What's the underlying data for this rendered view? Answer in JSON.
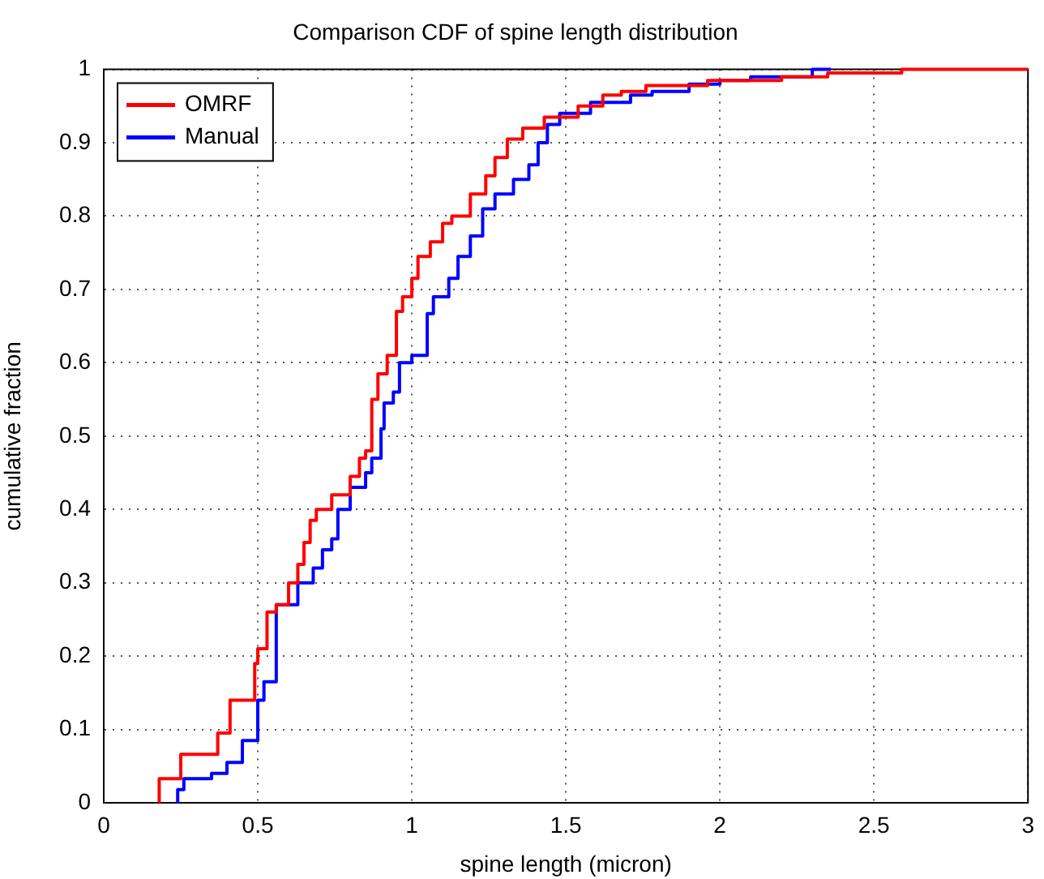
{
  "chart_data": {
    "type": "step",
    "title": "Comparison CDF of spine length distribution",
    "xlabel": "spine length (micron)",
    "ylabel": "cumulative fraction",
    "xlim": [
      0,
      3
    ],
    "ylim": [
      0,
      1
    ],
    "xticks": [
      0,
      0.5,
      1,
      1.5,
      2,
      2.5,
      3
    ],
    "yticks": [
      0,
      0.1,
      0.2,
      0.3,
      0.4,
      0.5,
      0.6,
      0.7,
      0.8,
      0.9,
      1
    ],
    "grid": true,
    "legend": "top left",
    "series": [
      {
        "name": "OMRF",
        "color": "#ff0000",
        "x": [
          0.18,
          0.25,
          0.37,
          0.41,
          0.49,
          0.5,
          0.53,
          0.56,
          0.6,
          0.63,
          0.65,
          0.67,
          0.69,
          0.74,
          0.8,
          0.83,
          0.85,
          0.87,
          0.89,
          0.92,
          0.95,
          0.97,
          1.0,
          1.02,
          1.06,
          1.1,
          1.13,
          1.19,
          1.24,
          1.27,
          1.31,
          1.36,
          1.43,
          1.54,
          1.62,
          1.68,
          1.76,
          1.96,
          2.2,
          2.35,
          2.59,
          2.73,
          2.77,
          3
        ],
        "values": [
          0,
          0.033,
          0.066,
          0.095,
          0.14,
          0.19,
          0.21,
          0.26,
          0.27,
          0.3,
          0.325,
          0.355,
          0.385,
          0.4,
          0.42,
          0.445,
          0.47,
          0.48,
          0.55,
          0.585,
          0.61,
          0.67,
          0.69,
          0.715,
          0.745,
          0.765,
          0.79,
          0.8,
          0.83,
          0.855,
          0.88,
          0.905,
          0.92,
          0.935,
          0.95,
          0.965,
          0.97,
          0.978,
          0.985,
          0.99,
          0.995,
          1,
          1,
          1
        ]
      },
      {
        "name": "Manual",
        "color": "#0000ff",
        "x": [
          0.24,
          0.26,
          0.35,
          0.4,
          0.45,
          0.5,
          0.52,
          0.56,
          0.63,
          0.68,
          0.71,
          0.74,
          0.76,
          0.8,
          0.85,
          0.87,
          0.9,
          0.91,
          0.94,
          0.96,
          1.0,
          1.05,
          1.07,
          1.12,
          1.15,
          1.19,
          1.23,
          1.27,
          1.33,
          1.38,
          1.41,
          1.44,
          1.48,
          1.58,
          1.71,
          1.78,
          1.9,
          2.0,
          2.1,
          2.3,
          2.36
        ],
        "values": [
          0,
          0.018,
          0.033,
          0.04,
          0.055,
          0.085,
          0.14,
          0.165,
          0.27,
          0.3,
          0.32,
          0.345,
          0.36,
          0.4,
          0.43,
          0.45,
          0.47,
          0.51,
          0.545,
          0.56,
          0.6,
          0.61,
          0.667,
          0.69,
          0.715,
          0.745,
          0.773,
          0.81,
          0.83,
          0.85,
          0.87,
          0.9,
          0.925,
          0.94,
          0.955,
          0.965,
          0.97,
          0.98,
          0.985,
          0.99,
          1
        ]
      }
    ]
  }
}
